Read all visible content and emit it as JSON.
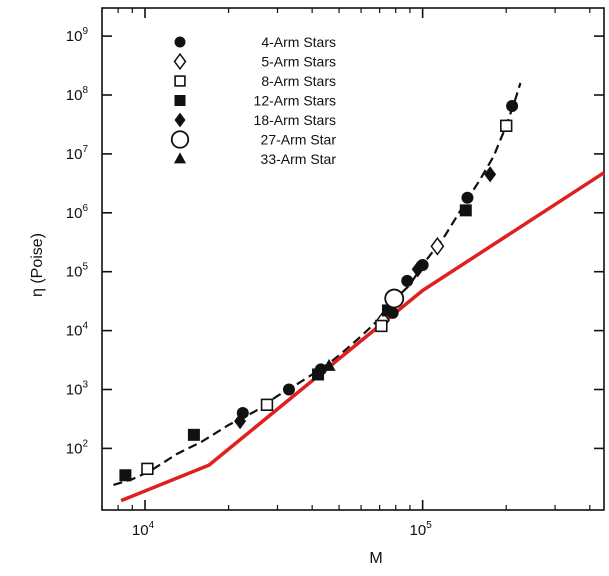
{
  "chart_data": {
    "type": "scatter",
    "xlabel": "M",
    "ylabel": "η (Poise)",
    "xscale": "log",
    "yscale": "log",
    "xlim": [
      7000,
      450000
    ],
    "ylim": [
      9,
      3000000000
    ],
    "x_ticks": [
      {
        "value": 10000,
        "base": "10",
        "exp": "4"
      },
      {
        "value": 100000,
        "base": "10",
        "exp": "5"
      }
    ],
    "y_ticks": [
      {
        "value": 100,
        "base": "10",
        "exp": "2"
      },
      {
        "value": 1000,
        "base": "10",
        "exp": "3"
      },
      {
        "value": 10000,
        "base": "10",
        "exp": "4"
      },
      {
        "value": 100000,
        "base": "10",
        "exp": "5"
      },
      {
        "value": 1000000,
        "base": "10",
        "exp": "6"
      },
      {
        "value": 10000000,
        "base": "10",
        "exp": "7"
      },
      {
        "value": 100000000,
        "base": "10",
        "exp": "8"
      },
      {
        "value": 1000000000,
        "base": "10",
        "exp": "9"
      }
    ],
    "grid": false,
    "legend_position": "top-left",
    "series": [
      {
        "name": "4-Arm Stars",
        "marker": "circle-filled",
        "points": [
          [
            22500,
            400
          ],
          [
            33000,
            1000
          ],
          [
            43000,
            2200
          ],
          [
            78000,
            20000
          ],
          [
            88000,
            70000
          ],
          [
            100000,
            130000
          ],
          [
            145000,
            1800000
          ],
          [
            210000,
            65000000
          ]
        ]
      },
      {
        "name": "5-Arm Stars",
        "marker": "diamond-open",
        "points": [
          [
            72000,
            15000
          ],
          [
            113000,
            270000
          ]
        ]
      },
      {
        "name": "8-Arm Stars",
        "marker": "square-open",
        "points": [
          [
            10200,
            45
          ],
          [
            27500,
            550
          ],
          [
            71000,
            12000
          ],
          [
            80000,
            35000
          ],
          [
            200000,
            30000000
          ]
        ]
      },
      {
        "name": "12-Arm Stars",
        "marker": "square-filled",
        "points": [
          [
            8500,
            35
          ],
          [
            15000,
            170
          ],
          [
            42000,
            1800
          ],
          [
            75000,
            22000
          ],
          [
            143000,
            1100000
          ]
        ]
      },
      {
        "name": "18-Arm Stars",
        "marker": "diamond-filled",
        "points": [
          [
            22000,
            290
          ],
          [
            96000,
            110000
          ],
          [
            175000,
            4500000
          ]
        ]
      },
      {
        "name": "27-Arm Star",
        "marker": "circle-open",
        "points": [
          [
            79000,
            35000
          ]
        ]
      },
      {
        "name": "33-Arm Star",
        "marker": "triangle-filled",
        "points": [
          [
            46000,
            2500
          ]
        ]
      }
    ],
    "fit_curve": [
      [
        7700,
        24
      ],
      [
        9000,
        30
      ],
      [
        10500,
        42
      ],
      [
        13000,
        80
      ],
      [
        16000,
        130
      ],
      [
        20000,
        250
      ],
      [
        25000,
        430
      ],
      [
        30000,
        780
      ],
      [
        35000,
        1200
      ],
      [
        40000,
        1800
      ],
      [
        45000,
        2600
      ],
      [
        50000,
        3800
      ],
      [
        60000,
        8000
      ],
      [
        70000,
        16000
      ],
      [
        80000,
        35000
      ],
      [
        90000,
        60000
      ],
      [
        100000,
        130000
      ],
      [
        120000,
        400000
      ],
      [
        140000,
        1300000
      ],
      [
        160000,
        3500000
      ],
      [
        180000,
        9000000
      ],
      [
        200000,
        30000000
      ],
      [
        215000,
        80000000
      ],
      [
        225000,
        160000000
      ]
    ],
    "reference_line": {
      "color": "#e02020",
      "points": [
        [
          8200,
          13
        ],
        [
          17000,
          52
        ],
        [
          100000,
          48000
        ],
        [
          450000,
          4800000
        ]
      ]
    }
  }
}
